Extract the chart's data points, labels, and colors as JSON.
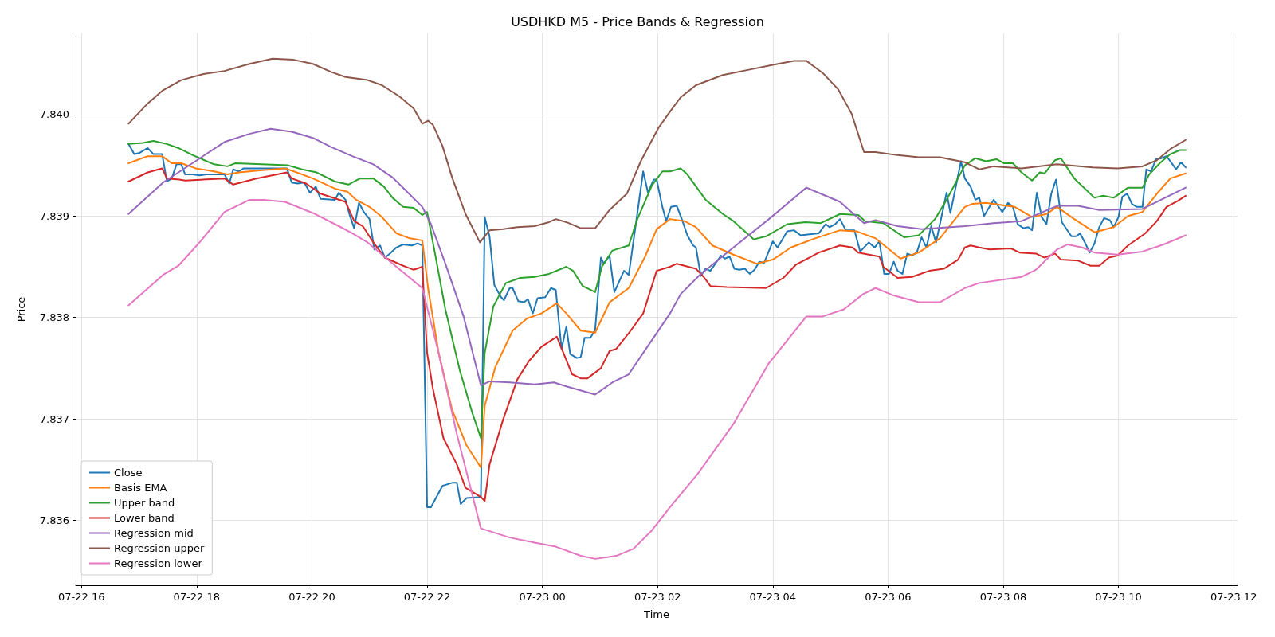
{
  "chart_data": {
    "type": "line",
    "title": "USDHKD M5 - Price Bands & Regression",
    "xlabel": "Time",
    "ylabel": "Price",
    "xlim": [
      "--07-22T15:54",
      "--07-23T12:04"
    ],
    "ylim": [
      7.83536,
      7.8408
    ],
    "xticks": [
      {
        "value": "--07-22T16:00",
        "label": "07-22 16"
      },
      {
        "value": "--07-22T18:00",
        "label": "07-22 18"
      },
      {
        "value": "--07-22T20:00",
        "label": "07-22 20"
      },
      {
        "value": "--07-22T22:00",
        "label": "07-22 22"
      },
      {
        "value": "--07-23T00:00",
        "label": "07-23 00"
      },
      {
        "value": "--07-23T02:00",
        "label": "07-23 02"
      },
      {
        "value": "--07-23T04:00",
        "label": "07-23 04"
      },
      {
        "value": "--07-23T06:00",
        "label": "07-23 06"
      },
      {
        "value": "--07-23T08:00",
        "label": "07-23 08"
      },
      {
        "value": "--07-23T10:00",
        "label": "07-23 10"
      },
      {
        "value": "--07-23T12:00",
        "label": "07-23 12"
      }
    ],
    "yticks": [
      7.836,
      7.837,
      7.838,
      7.839,
      {
        "value": 7.84,
        "label": "7.840"
      }
    ],
    "grid": true,
    "legend": "bottom left",
    "line_style": "solid",
    "series": [
      {
        "name": "Close",
        "color": "#1f77b4",
        "x": [
          "--07-22T16:49",
          "--07-22T16:55",
          "--07-22T17:00",
          "--07-22T17:09",
          "--07-22T17:15",
          "--07-22T17:24",
          "--07-22T17:29",
          "--07-22T17:34",
          "--07-22T17:39",
          "--07-22T17:44",
          "--07-22T17:48",
          "--07-22T17:56",
          "--07-22T18:03",
          "--07-22T18:10",
          "--07-22T18:29",
          "--07-22T18:34",
          "--07-22T18:38",
          "--07-22T18:44",
          "--07-22T18:49",
          "--07-22T19:34",
          "--07-22T19:39",
          "--07-22T19:45",
          "--07-22T19:52",
          "--07-22T19:58",
          "--07-22T20:04",
          "--07-22T20:09",
          "--07-22T20:24",
          "--07-22T20:28",
          "--07-22T20:35",
          "--07-22T20:39",
          "--07-22T20:44",
          "--07-22T20:49",
          "--07-22T20:54",
          "--07-22T21:00",
          "--07-22T21:05",
          "--07-22T21:11",
          "--07-22T21:16",
          "--07-22T21:20",
          "--07-22T21:28",
          "--07-22T21:35",
          "--07-22T21:44",
          "--07-22T21:50",
          "--07-22T21:55",
          "--07-22T22:00",
          "--07-22T22:04",
          "--07-22T22:16",
          "--07-22T22:26",
          "--07-22T22:31",
          "--07-22T22:35",
          "--07-22T22:41",
          "--07-22T22:56",
          "--07-22T23:00",
          "--07-22T23:05",
          "--07-22T23:10",
          "--07-22T23:17",
          "--07-22T23:20",
          "--07-22T23:26",
          "--07-22T23:29",
          "--07-22T23:35",
          "--07-22T23:41",
          "--07-22T23:45",
          "--07-22T23:50",
          "--07-22T23:55",
          "--07-23T00:03",
          "--07-23T00:09",
          "--07-23T00:14",
          "--07-23T00:20",
          "--07-23T00:25",
          "--07-23T00:29",
          "--07-23T00:36",
          "--07-23T00:40",
          "--07-23T00:44",
          "--07-23T00:50",
          "--07-23T00:55",
          "--07-23T01:01",
          "--07-23T01:04",
          "--07-23T01:10",
          "--07-23T01:15",
          "--07-23T01:25",
          "--07-23T01:30",
          "--07-23T01:45",
          "--07-23T01:50",
          "--07-23T01:56",
          "--07-23T01:59",
          "--07-23T02:05",
          "--07-23T02:09",
          "--07-23T02:14",
          "--07-23T02:20",
          "--07-23T02:26",
          "--07-23T02:31",
          "--07-23T02:37",
          "--07-23T02:40",
          "--07-23T02:45",
          "--07-23T02:50",
          "--07-23T02:55",
          "--07-23T03:06",
          "--07-23T03:10",
          "--07-23T03:15",
          "--07-23T03:20",
          "--07-23T03:25",
          "--07-23T03:31",
          "--07-23T03:36",
          "--07-23T03:41",
          "--07-23T03:46",
          "--07-23T03:51",
          "--07-23T04:00",
          "--07-23T04:05",
          "--07-23T04:15",
          "--07-23T04:22",
          "--07-23T04:29",
          "--07-23T04:48",
          "--07-23T04:55",
          "--07-23T04:59",
          "--07-23T05:05",
          "--07-23T05:10",
          "--07-23T05:16",
          "--07-23T05:25",
          "--07-23T05:31",
          "--07-23T05:40",
          "--07-23T05:46",
          "--07-23T05:51",
          "--07-23T05:56",
          "--07-23T06:01",
          "--07-23T06:06",
          "--07-23T06:10",
          "--07-23T06:15",
          "--07-23T06:20",
          "--07-23T06:25",
          "--07-23T06:30",
          "--07-23T06:35",
          "--07-23T06:40",
          "--07-23T06:45",
          "--07-23T06:50",
          "--07-23T07:01",
          "--07-23T07:05",
          "--07-23T07:16",
          "--07-23T07:20",
          "--07-23T07:26",
          "--07-23T07:31",
          "--07-23T07:35",
          "--07-23T07:40",
          "--07-23T07:50",
          "--07-23T07:59",
          "--07-23T08:05",
          "--07-23T08:10",
          "--07-23T08:15",
          "--07-23T08:21",
          "--07-23T08:26",
          "--07-23T08:30",
          "--07-23T08:35",
          "--07-23T08:40",
          "--07-23T08:45",
          "--07-23T08:50",
          "--07-23T08:55",
          "--07-23T09:01",
          "--07-23T09:11",
          "--07-23T09:16",
          "--07-23T09:20",
          "--07-23T09:25",
          "--07-23T09:30",
          "--07-23T09:35",
          "--07-23T09:40",
          "--07-23T09:45",
          "--07-23T09:51",
          "--07-23T09:55",
          "--07-23T10:00",
          "--07-23T10:04",
          "--07-23T10:09",
          "--07-23T10:14",
          "--07-23T10:19",
          "--07-23T10:25",
          "--07-23T10:29",
          "--07-23T10:34",
          "--07-23T10:39",
          "--07-23T10:45",
          "--07-23T10:50",
          "--07-23T10:54",
          "--07-23T11:00",
          "--07-23T11:05",
          "--07-23T11:10"
        ],
        "values": [
          7.83971,
          7.83961,
          7.83962,
          7.83967,
          7.83961,
          7.83961,
          7.83934,
          7.83937,
          7.83951,
          7.83951,
          7.83941,
          7.83941,
          7.8394,
          7.83941,
          7.83941,
          7.83932,
          7.83946,
          7.83944,
          7.83947,
          7.83947,
          7.83933,
          7.83932,
          7.83933,
          7.83923,
          7.83929,
          7.83917,
          7.83916,
          7.83923,
          7.83916,
          7.83902,
          7.83888,
          7.83913,
          7.83904,
          7.83897,
          7.83867,
          7.83871,
          7.83859,
          7.83862,
          7.83869,
          7.83872,
          7.83871,
          7.83873,
          7.83871,
          7.83613,
          7.83613,
          7.83634,
          7.83637,
          7.83637,
          7.83616,
          7.83622,
          7.83623,
          7.83899,
          7.8388,
          7.83832,
          7.8382,
          7.83817,
          7.83829,
          7.83829,
          7.83816,
          7.83815,
          7.83818,
          7.83804,
          7.83819,
          7.8382,
          7.83829,
          7.83827,
          7.83769,
          7.83791,
          7.83764,
          7.8376,
          7.83761,
          7.8378,
          7.8378,
          7.83788,
          7.83859,
          7.83853,
          7.83861,
          7.83825,
          7.83846,
          7.83842,
          7.83944,
          7.83923,
          7.83936,
          7.83936,
          7.83909,
          7.83895,
          7.83909,
          7.8391,
          7.83895,
          7.83881,
          7.83871,
          7.83869,
          7.83841,
          7.83848,
          7.83846,
          7.83861,
          7.83858,
          7.8386,
          7.83848,
          7.83847,
          7.83848,
          7.83843,
          7.83847,
          7.83855,
          7.83854,
          7.83875,
          7.83869,
          7.83885,
          7.83886,
          7.83881,
          7.83883,
          7.83892,
          7.83889,
          7.83892,
          7.83897,
          7.83886,
          7.83886,
          7.83865,
          7.83874,
          7.83869,
          7.83875,
          7.83843,
          7.83843,
          7.83855,
          7.83846,
          7.83843,
          7.83863,
          7.83861,
          7.83864,
          7.83879,
          7.83869,
          7.8389,
          7.83874,
          7.83923,
          7.83903,
          7.83954,
          7.83937,
          7.83929,
          7.83916,
          7.83918,
          7.839,
          7.83916,
          7.83904,
          7.83913,
          7.83909,
          7.83892,
          7.83888,
          7.83889,
          7.83886,
          7.83923,
          7.83899,
          7.83892,
          7.83922,
          7.83936,
          7.83894,
          7.8388,
          7.8388,
          7.83883,
          7.83874,
          7.83864,
          7.83873,
          7.83889,
          7.83898,
          7.83896,
          7.83889,
          7.83899,
          7.83919,
          7.83922,
          7.83912,
          7.83909,
          7.83909,
          7.83946,
          7.83944,
          7.83956,
          7.83957,
          7.83959,
          7.83954,
          7.83946,
          7.83953,
          7.83948
        ]
      },
      {
        "name": "Basis EMA",
        "color": "#ff7f0e",
        "x": [
          "--07-22T16:49",
          "--07-22T17:09",
          "--07-22T17:24",
          "--07-22T17:34",
          "--07-22T17:44",
          "--07-22T17:59",
          "--07-22T18:18",
          "--07-22T18:32",
          "--07-22T18:44",
          "--07-22T19:06",
          "--07-22T19:32",
          "--07-22T19:47",
          "--07-22T20:01",
          "--07-22T20:24",
          "--07-22T20:37",
          "--07-22T20:46",
          "--07-22T21:00",
          "--07-22T21:13",
          "--07-22T21:28",
          "--07-22T21:42",
          "--07-22T21:55",
          "--07-22T22:01",
          "--07-22T22:12",
          "--07-22T22:26",
          "--07-22T22:41",
          "--07-22T22:56",
          "--07-22T23:00",
          "--07-22T23:11",
          "--07-22T23:29",
          "--07-22T23:44",
          "--07-22T23:59",
          "--07-23T00:15",
          "--07-23T00:25",
          "--07-23T00:40",
          "--07-23T00:55",
          "--07-23T01:10",
          "--07-23T01:30",
          "--07-23T01:47",
          "--07-23T01:59",
          "--07-23T02:13",
          "--07-23T02:28",
          "--07-23T02:40",
          "--07-23T02:57",
          "--07-23T03:19",
          "--07-23T03:43",
          "--07-23T04:00",
          "--07-23T04:19",
          "--07-23T04:44",
          "--07-23T05:10",
          "--07-23T05:27",
          "--07-23T05:47",
          "--07-23T06:13",
          "--07-23T06:32",
          "--07-23T06:54",
          "--07-23T07:20",
          "--07-23T07:28",
          "--07-23T07:42",
          "--07-23T08:12",
          "--07-23T08:30",
          "--07-23T08:45",
          "--07-23T08:56",
          "--07-23T09:14",
          "--07-23T09:35",
          "--07-23T09:55",
          "--07-23T10:10",
          "--07-23T10:25",
          "--07-23T10:40",
          "--07-23T10:54",
          "--07-23T11:10"
        ],
        "values": [
          7.83952,
          7.83959,
          7.83959,
          7.83952,
          7.83952,
          7.83947,
          7.83944,
          7.83941,
          7.83943,
          7.83945,
          7.83947,
          7.83942,
          7.83937,
          7.83927,
          7.83924,
          7.83916,
          7.83909,
          7.83899,
          7.83883,
          7.83878,
          7.83876,
          7.83829,
          7.83765,
          7.83709,
          7.83674,
          7.83652,
          7.83713,
          7.83751,
          7.83787,
          7.83799,
          7.83804,
          7.83814,
          7.83804,
          7.83787,
          7.83785,
          7.83815,
          7.83829,
          7.8386,
          7.83887,
          7.83897,
          7.83895,
          7.83889,
          7.83871,
          7.83862,
          7.83853,
          7.83857,
          7.83869,
          7.83878,
          7.83886,
          7.83885,
          7.83878,
          7.83858,
          7.83864,
          7.83878,
          7.83909,
          7.83912,
          7.83913,
          7.83909,
          7.83899,
          7.83902,
          7.83909,
          7.83897,
          7.83884,
          7.83889,
          7.839,
          7.83904,
          7.83922,
          7.83937,
          7.83942
        ]
      },
      {
        "name": "Upper band",
        "color": "#2ca02c",
        "x": [
          "--07-22T16:49",
          "--07-22T17:04",
          "--07-22T17:15",
          "--07-22T17:29",
          "--07-22T17:41",
          "--07-22T17:56",
          "--07-22T18:18",
          "--07-22T18:32",
          "--07-22T18:40",
          "--07-22T19:35",
          "--07-22T19:50",
          "--07-22T20:05",
          "--07-22T20:24",
          "--07-22T20:38",
          "--07-22T20:50",
          "--07-22T21:04",
          "--07-22T21:15",
          "--07-22T21:24",
          "--07-22T21:35",
          "--07-22T21:46",
          "--07-22T21:55",
          "--07-22T22:00",
          "--07-22T22:08",
          "--07-22T22:19",
          "--07-22T22:34",
          "--07-22T22:47",
          "--07-22T22:56",
          "--07-22T23:00",
          "--07-22T23:09",
          "--07-22T23:22",
          "--07-22T23:37",
          "--07-22T23:52",
          "--07-23T00:07",
          "--07-23T00:25",
          "--07-23T00:32",
          "--07-23T00:42",
          "--07-23T00:55",
          "--07-23T01:02",
          "--07-23T01:13",
          "--07-23T01:30",
          "--07-23T01:39",
          "--07-23T01:54",
          "--07-23T02:05",
          "--07-23T02:13",
          "--07-23T02:24",
          "--07-23T02:31",
          "--07-23T02:50",
          "--07-23T03:08",
          "--07-23T03:19",
          "--07-23T03:40",
          "--07-23T03:53",
          "--07-23T04:15",
          "--07-23T04:34",
          "--07-23T04:50",
          "--07-23T05:10",
          "--07-23T05:29",
          "--07-23T05:36",
          "--07-23T05:55",
          "--07-23T06:17",
          "--07-23T06:32",
          "--07-23T06:49",
          "--07-23T07:01",
          "--07-23T07:20",
          "--07-23T07:31",
          "--07-23T07:42",
          "--07-23T07:53",
          "--07-23T08:01",
          "--07-23T08:10",
          "--07-23T08:19",
          "--07-23T08:30",
          "--07-23T08:38",
          "--07-23T08:43",
          "--07-23T08:54",
          "--07-23T09:00",
          "--07-23T09:14",
          "--07-23T09:35",
          "--07-23T09:44",
          "--07-23T09:55",
          "--07-23T10:10",
          "--07-23T10:25",
          "--07-23T10:32",
          "--07-23T10:43",
          "--07-23T10:54",
          "--07-23T11:04",
          "--07-23T11:10"
        ],
        "values": [
          7.83971,
          7.83972,
          7.83974,
          7.83971,
          7.83967,
          7.8396,
          7.83951,
          7.83949,
          7.83952,
          7.8395,
          7.83946,
          7.83943,
          7.83934,
          7.83931,
          7.83937,
          7.83937,
          7.83929,
          7.83918,
          7.83909,
          7.83908,
          7.83901,
          7.83904,
          7.83864,
          7.83808,
          7.83748,
          7.83706,
          7.83681,
          7.83765,
          7.83811,
          7.83834,
          7.83839,
          7.8384,
          7.83843,
          7.8385,
          7.83846,
          7.83831,
          7.83825,
          7.8385,
          7.83866,
          7.83871,
          7.83897,
          7.8393,
          7.83944,
          7.83944,
          7.83947,
          7.83941,
          7.83916,
          7.83902,
          7.83895,
          7.83877,
          7.8388,
          7.83892,
          7.83894,
          7.83893,
          7.83902,
          7.83901,
          7.83895,
          7.83893,
          7.83879,
          7.83881,
          7.83897,
          7.83916,
          7.8395,
          7.83957,
          7.83954,
          7.83956,
          7.83952,
          7.83952,
          7.83943,
          7.83935,
          7.83943,
          7.83942,
          7.83955,
          7.83957,
          7.83937,
          7.83918,
          7.8392,
          7.83918,
          7.83928,
          7.83928,
          7.83941,
          7.83952,
          7.83961,
          7.83965,
          7.83965
        ]
      },
      {
        "name": "Lower band",
        "color": "#d62728",
        "x": [
          "--07-22T16:49",
          "--07-22T17:09",
          "--07-22T17:24",
          "--07-22T17:29",
          "--07-22T17:42",
          "--07-22T17:48",
          "--07-22T18:29",
          "--07-22T18:38",
          "--07-22T19:02",
          "--07-22T19:34",
          "--07-22T19:39",
          "--07-22T19:54",
          "--07-22T20:09",
          "--07-22T20:35",
          "--07-22T20:44",
          "--07-22T20:53",
          "--07-22T21:04",
          "--07-22T21:16",
          "--07-22T21:35",
          "--07-22T21:46",
          "--07-22T21:55",
          "--07-22T22:00",
          "--07-22T22:06",
          "--07-22T22:17",
          "--07-22T22:31",
          "--07-22T22:40",
          "--07-22T22:56",
          "--07-22T23:00",
          "--07-22T23:05",
          "--07-22T23:19",
          "--07-22T23:34",
          "--07-22T23:46",
          "--07-22T23:59",
          "--07-23T00:15",
          "--07-23T00:22",
          "--07-23T00:31",
          "--07-23T00:40",
          "--07-23T00:47",
          "--07-23T01:01",
          "--07-23T01:10",
          "--07-23T01:17",
          "--07-23T01:32",
          "--07-23T01:45",
          "--07-23T01:59",
          "--07-23T02:13",
          "--07-23T02:20",
          "--07-23T02:40",
          "--07-23T02:48",
          "--07-23T02:55",
          "--07-23T03:12",
          "--07-23T03:53",
          "--07-23T04:11",
          "--07-23T04:24",
          "--07-23T04:48",
          "--07-23T05:10",
          "--07-23T05:23",
          "--07-23T05:29",
          "--07-23T05:51",
          "--07-23T05:55",
          "--07-23T06:10",
          "--07-23T06:25",
          "--07-23T06:43",
          "--07-23T06:58",
          "--07-23T07:13",
          "--07-23T07:20",
          "--07-23T07:26",
          "--07-23T07:35",
          "--07-23T07:46",
          "--07-23T08:08",
          "--07-23T08:17",
          "--07-23T08:34",
          "--07-23T08:43",
          "--07-23T08:54",
          "--07-23T09:00",
          "--07-23T09:18",
          "--07-23T09:31",
          "--07-23T09:40",
          "--07-23T09:50",
          "--07-23T09:59",
          "--07-23T10:10",
          "--07-23T10:28",
          "--07-23T10:40",
          "--07-23T10:50",
          "--07-23T11:02",
          "--07-23T11:10"
        ],
        "values": [
          7.83934,
          7.83943,
          7.83947,
          7.83937,
          7.83936,
          7.83935,
          7.83937,
          7.83931,
          7.83937,
          7.83943,
          7.83937,
          7.83932,
          7.83922,
          7.83914,
          7.83895,
          7.8389,
          7.83874,
          7.83859,
          7.83851,
          7.83847,
          7.8385,
          7.83765,
          7.8373,
          7.83681,
          7.83655,
          7.83632,
          7.83623,
          7.83619,
          7.83655,
          7.83699,
          7.83739,
          7.83757,
          7.83771,
          7.83781,
          7.83765,
          7.83744,
          7.8374,
          7.8374,
          7.8375,
          7.83767,
          7.83769,
          7.83787,
          7.83804,
          7.83846,
          7.8385,
          7.83853,
          7.83848,
          7.8384,
          7.83831,
          7.8383,
          7.83829,
          7.83839,
          7.83852,
          7.83864,
          7.83871,
          7.83869,
          7.83864,
          7.8386,
          7.8385,
          7.83839,
          7.8384,
          7.83846,
          7.83848,
          7.83857,
          7.83869,
          7.83871,
          7.83869,
          7.83867,
          7.83868,
          7.83864,
          7.83863,
          7.83859,
          7.83863,
          7.83857,
          7.83856,
          7.83851,
          7.83851,
          7.83859,
          7.83861,
          7.83871,
          7.83883,
          7.83895,
          7.83909,
          7.83915,
          7.8392
        ]
      },
      {
        "name": "Regression mid",
        "color": "#9467bd",
        "x": [
          "--07-22T16:49",
          "--07-22T17:25",
          "--07-22T18:29",
          "--07-22T18:55",
          "--07-22T19:17",
          "--07-22T19:39",
          "--07-22T20:01",
          "--07-22T20:20",
          "--07-22T20:42",
          "--07-22T21:04",
          "--07-22T21:24",
          "--07-22T21:38",
          "--07-22T21:55",
          "--07-22T22:04",
          "--07-22T22:19",
          "--07-22T22:38",
          "--07-22T22:56",
          "--07-22T23:05",
          "--07-22T23:26",
          "--07-22T23:52",
          "--07-23T00:12",
          "--07-23T00:25",
          "--07-23T00:55",
          "--07-23T01:13",
          "--07-23T01:30",
          "--07-23T01:50",
          "--07-23T02:13",
          "--07-23T02:24",
          "--07-23T02:44",
          "--07-23T03:19",
          "--07-23T03:56",
          "--07-23T04:35",
          "--07-23T05:10",
          "--07-23T05:35",
          "--07-23T05:47",
          "--07-23T06:10",
          "--07-23T06:35",
          "--07-23T07:20",
          "--07-23T07:50",
          "--07-23T08:19",
          "--07-23T08:56",
          "--07-23T09:18",
          "--07-23T09:40",
          "--07-23T10:25",
          "--07-23T11:10"
        ],
        "values": [
          7.83902,
          7.83933,
          7.83973,
          7.83981,
          7.83986,
          7.83983,
          7.83977,
          7.83968,
          7.83959,
          7.83951,
          7.83938,
          7.83925,
          7.83909,
          7.83892,
          7.83853,
          7.83801,
          7.83733,
          7.83737,
          7.83736,
          7.83734,
          7.83736,
          7.83732,
          7.83724,
          7.83736,
          7.83744,
          7.83772,
          7.83804,
          7.83823,
          7.83842,
          7.83869,
          7.83897,
          7.83928,
          7.83914,
          7.83893,
          7.83896,
          7.8389,
          7.83887,
          7.8389,
          7.83893,
          7.83895,
          7.8391,
          7.8391,
          7.83906,
          7.83907,
          7.83928
        ]
      },
      {
        "name": "Regression upper",
        "color": "#8c564b",
        "x": [
          "--07-22T16:49",
          "--07-22T17:09",
          "--07-22T17:25",
          "--07-22T17:44",
          "--07-22T18:07",
          "--07-22T18:29",
          "--07-22T18:55",
          "--07-22T19:19",
          "--07-22T19:41",
          "--07-22T20:01",
          "--07-22T20:20",
          "--07-22T20:35",
          "--07-22T20:58",
          "--07-22T21:13",
          "--07-22T21:31",
          "--07-22T21:46",
          "--07-22T21:55",
          "--07-22T22:01",
          "--07-22T22:06",
          "--07-22T22:16",
          "--07-22T22:26",
          "--07-22T22:40",
          "--07-22T22:55",
          "--07-22T23:05",
          "--07-22T23:19",
          "--07-22T23:34",
          "--07-22T23:52",
          "--07-23T00:07",
          "--07-23T00:14",
          "--07-23T00:25",
          "--07-23T00:40",
          "--07-23T00:55",
          "--07-23T01:10",
          "--07-23T01:28",
          "--07-23T01:43",
          "--07-23T02:01",
          "--07-23T02:13",
          "--07-23T02:24",
          "--07-23T02:40",
          "--07-23T03:08",
          "--07-23T03:34",
          "--07-23T04:00",
          "--07-23T04:22",
          "--07-23T04:35",
          "--07-23T04:52",
          "--07-23T05:08",
          "--07-23T05:22",
          "--07-23T05:35",
          "--07-23T05:47",
          "--07-23T06:10",
          "--07-23T06:32",
          "--07-23T06:54",
          "--07-23T07:20",
          "--07-23T07:35",
          "--07-23T07:50",
          "--07-23T08:19",
          "--07-23T08:56",
          "--07-23T09:33",
          "--07-23T09:59",
          "--07-23T10:25",
          "--07-23T10:40",
          "--07-23T10:54",
          "--07-23T11:10"
        ],
        "values": [
          7.83991,
          7.84011,
          7.84024,
          7.84034,
          7.8404,
          7.84043,
          7.8405,
          7.84055,
          7.84054,
          7.8405,
          7.84042,
          7.84037,
          7.84034,
          7.84029,
          7.84018,
          7.84006,
          7.83991,
          7.83994,
          7.8399,
          7.83969,
          7.83938,
          7.83902,
          7.83874,
          7.83886,
          7.83887,
          7.83889,
          7.8389,
          7.83894,
          7.83897,
          7.83894,
          7.83888,
          7.83888,
          7.83906,
          7.83922,
          7.83955,
          7.83987,
          7.84003,
          7.84017,
          7.84029,
          7.84039,
          7.84044,
          7.84049,
          7.84053,
          7.84053,
          7.84041,
          7.84025,
          7.84001,
          7.83963,
          7.83963,
          7.8396,
          7.83958,
          7.83958,
          7.83953,
          7.83946,
          7.83949,
          7.83947,
          7.83951,
          7.83948,
          7.83947,
          7.83949,
          7.83955,
          7.83966,
          7.83975
        ]
      },
      {
        "name": "Regression lower",
        "color": "#e377c2",
        "x": [
          "--07-22T16:49",
          "--07-22T17:25",
          "--07-22T17:41",
          "--07-22T18:03",
          "--07-22T18:29",
          "--07-22T18:55",
          "--07-22T19:10",
          "--07-22T19:32",
          "--07-22T20:01",
          "--07-22T20:24",
          "--07-22T20:42",
          "--07-22T20:58",
          "--07-22T21:28",
          "--07-22T21:55",
          "--07-22T22:12",
          "--07-22T22:31",
          "--07-22T22:56",
          "--07-22T23:26",
          "--07-22T23:52",
          "--07-23T00:14",
          "--07-23T00:40",
          "--07-23T00:55",
          "--07-23T01:17",
          "--07-23T01:35",
          "--07-23T01:54",
          "--07-23T02:13",
          "--07-23T02:42",
          "--07-23T03:19",
          "--07-23T03:56",
          "--07-23T04:35",
          "--07-23T04:52",
          "--07-23T05:14",
          "--07-23T05:34",
          "--07-23T05:47",
          "--07-23T06:05",
          "--07-23T06:32",
          "--07-23T06:54",
          "--07-23T07:20",
          "--07-23T07:35",
          "--07-23T08:19",
          "--07-23T08:34",
          "--07-23T08:56",
          "--07-23T09:07",
          "--07-23T09:22",
          "--07-23T09:35",
          "--07-23T09:59",
          "--07-23T10:25",
          "--07-23T10:47",
          "--07-23T11:10"
        ],
        "values": [
          7.83812,
          7.83842,
          7.83851,
          7.83874,
          7.83904,
          7.83916,
          7.83916,
          7.83914,
          7.83903,
          7.83892,
          7.83883,
          7.83874,
          7.8385,
          7.83829,
          7.83765,
          7.83685,
          7.83592,
          7.83583,
          7.83578,
          7.83574,
          7.83565,
          7.83562,
          7.83565,
          7.83572,
          7.8359,
          7.83613,
          7.83646,
          7.83695,
          7.83755,
          7.83801,
          7.83801,
          7.83808,
          7.83823,
          7.83829,
          7.83822,
          7.83815,
          7.83815,
          7.83829,
          7.83834,
          7.8384,
          7.83847,
          7.83867,
          7.83872,
          7.83869,
          7.83864,
          7.83862,
          7.83865,
          7.83872,
          7.83881
        ]
      }
    ]
  }
}
